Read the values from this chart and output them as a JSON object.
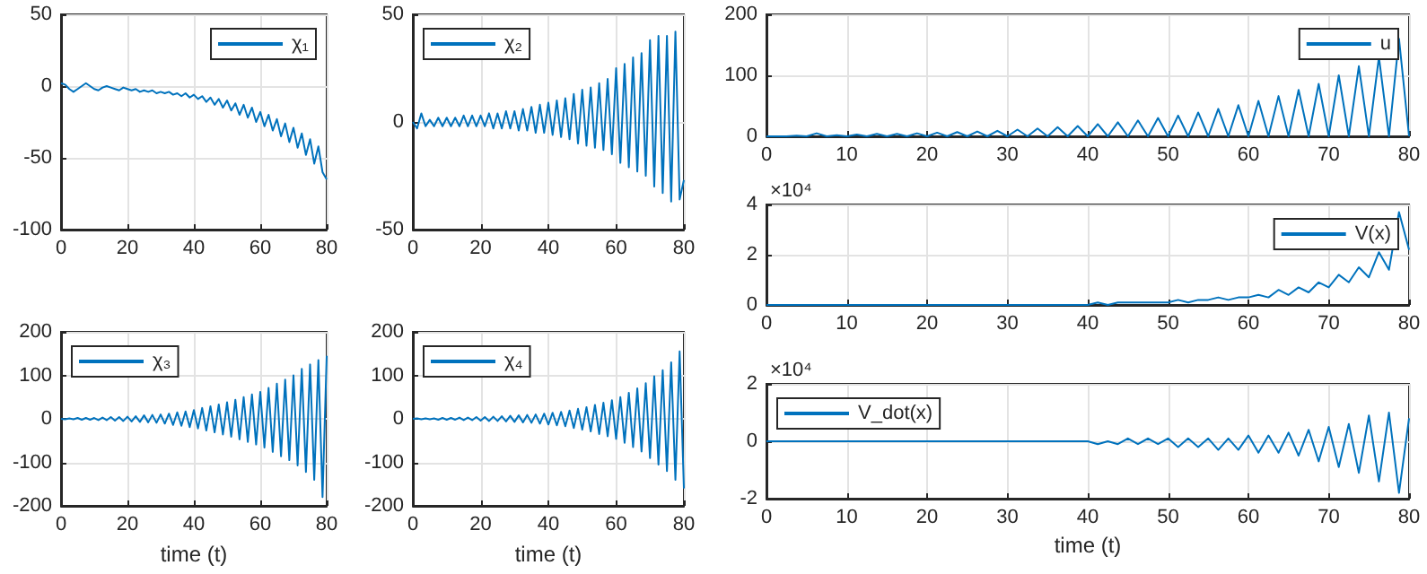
{
  "chart_data": [
    {
      "type": "line",
      "x": [
        0,
        1.25,
        2.5,
        3.75,
        5,
        6.25,
        7.5,
        8.75,
        10,
        11.25,
        12.5,
        13.75,
        15,
        16.25,
        17.5,
        18.75,
        20,
        21.25,
        22.5,
        23.75,
        25,
        26.25,
        27.5,
        28.75,
        30,
        31.25,
        32.5,
        33.75,
        35,
        36.25,
        37.5,
        38.75,
        40,
        41.25,
        42.5,
        43.75,
        45,
        46.25,
        47.5,
        48.75,
        50,
        51.25,
        52.5,
        53.75,
        55,
        56.25,
        57.5,
        58.75,
        60,
        61.25,
        62.5,
        63.75,
        65,
        66.25,
        67.5,
        68.75,
        70,
        71.25,
        72.5,
        73.75,
        75,
        76.25,
        77.5,
        78.75,
        80
      ],
      "xlim": [
        0,
        80
      ],
      "xticks": [
        0,
        20,
        40,
        60,
        80
      ],
      "ylim": [
        -100,
        50
      ],
      "yticks": [
        -100,
        -50,
        0,
        50
      ],
      "grid": true,
      "legend": "top right",
      "marker": "none",
      "series": [
        {
          "name": "χ₁",
          "color": "#0072bd",
          "values": [
            2,
            1,
            -2,
            -4,
            -2,
            0,
            2,
            0,
            -2,
            -3,
            -1,
            0,
            -1,
            -2,
            -3,
            -1,
            -2,
            -3,
            -2,
            -4,
            -3,
            -4,
            -3,
            -5,
            -4,
            -5,
            -4,
            -6,
            -5,
            -7,
            -5,
            -8,
            -6,
            -9,
            -7,
            -11,
            -8,
            -13,
            -9,
            -15,
            -10,
            -17,
            -12,
            -20,
            -13,
            -22,
            -15,
            -25,
            -18,
            -28,
            -20,
            -31,
            -23,
            -35,
            -26,
            -39,
            -29,
            -43,
            -33,
            -48,
            -37,
            -54,
            -42,
            -60,
            -65
          ]
        }
      ]
    },
    {
      "type": "line",
      "x": [
        0,
        1.25,
        2.5,
        3.75,
        5,
        6.25,
        7.5,
        8.75,
        10,
        11.25,
        12.5,
        13.75,
        15,
        16.25,
        17.5,
        18.75,
        20,
        21.25,
        22.5,
        23.75,
        25,
        26.25,
        27.5,
        28.75,
        30,
        31.25,
        32.5,
        33.75,
        35,
        36.25,
        37.5,
        38.75,
        40,
        41.25,
        42.5,
        43.75,
        45,
        46.25,
        47.5,
        48.75,
        50,
        51.25,
        52.5,
        53.75,
        55,
        56.25,
        57.5,
        58.75,
        60,
        61.25,
        62.5,
        63.75,
        65,
        66.25,
        67.5,
        68.75,
        70,
        71.25,
        72.5,
        73.75,
        75,
        76.25,
        77.5,
        78.75,
        80
      ],
      "xlim": [
        0,
        80
      ],
      "xticks": [
        0,
        20,
        40,
        60,
        80
      ],
      "ylim": [
        -50,
        50
      ],
      "yticks": [
        -50,
        0,
        50
      ],
      "grid": true,
      "legend": "top left",
      "marker": "none",
      "series": [
        {
          "name": "χ₂",
          "color": "#0072bd",
          "values": [
            0,
            -3,
            4,
            -2,
            1,
            -2,
            2,
            -2,
            2,
            -2,
            2,
            -2,
            3,
            -2,
            3,
            -2,
            3,
            -2,
            4,
            -3,
            4,
            -3,
            5,
            -3,
            5,
            -4,
            6,
            -4,
            7,
            -5,
            8,
            -5,
            9,
            -6,
            10,
            -7,
            11,
            -8,
            13,
            -10,
            15,
            -11,
            16,
            -12,
            18,
            -13,
            20,
            -15,
            25,
            -19,
            27,
            -21,
            30,
            -23,
            32,
            -25,
            38,
            -30,
            40,
            -33,
            40,
            -37,
            42,
            -36,
            -27
          ]
        }
      ]
    },
    {
      "type": "line",
      "x": [
        0,
        1.25,
        2.5,
        3.75,
        5,
        6.25,
        7.5,
        8.75,
        10,
        11.25,
        12.5,
        13.75,
        15,
        16.25,
        17.5,
        18.75,
        20,
        21.25,
        22.5,
        23.75,
        25,
        26.25,
        27.5,
        28.75,
        30,
        31.25,
        32.5,
        33.75,
        35,
        36.25,
        37.5,
        38.75,
        40,
        41.25,
        42.5,
        43.75,
        45,
        46.25,
        47.5,
        48.75,
        50,
        51.25,
        52.5,
        53.75,
        55,
        56.25,
        57.5,
        58.75,
        60,
        61.25,
        62.5,
        63.75,
        65,
        66.25,
        67.5,
        68.75,
        70,
        71.25,
        72.5,
        73.75,
        75,
        76.25,
        77.5,
        78.75,
        80
      ],
      "xlim": [
        0,
        80
      ],
      "xticks": [
        0,
        20,
        40,
        60,
        80
      ],
      "ylim": [
        -200,
        200
      ],
      "yticks": [
        -200,
        -100,
        0,
        100,
        200
      ],
      "xlabel": "time (t)",
      "grid": true,
      "legend": "top left",
      "marker": "none",
      "series": [
        {
          "name": "χ₃",
          "color": "#0072bd",
          "values": [
            0,
            -1,
            1,
            -1,
            2,
            -2,
            2,
            -2,
            2,
            -3,
            3,
            -3,
            4,
            -4,
            4,
            -5,
            5,
            -6,
            6,
            -7,
            8,
            -8,
            9,
            -9,
            10,
            -11,
            12,
            -14,
            15,
            -16,
            17,
            -19,
            20,
            -22,
            25,
            -27,
            29,
            -31,
            33,
            -36,
            38,
            -41,
            44,
            -47,
            50,
            -53,
            56,
            -59,
            62,
            -66,
            71,
            -76,
            81,
            -86,
            90,
            -95,
            100,
            -107,
            115,
            -122,
            125,
            -140,
            135,
            -180,
            145
          ]
        }
      ]
    },
    {
      "type": "line",
      "x": [
        0,
        1.25,
        2.5,
        3.75,
        5,
        6.25,
        7.5,
        8.75,
        10,
        11.25,
        12.5,
        13.75,
        15,
        16.25,
        17.5,
        18.75,
        20,
        21.25,
        22.5,
        23.75,
        25,
        26.25,
        27.5,
        28.75,
        30,
        31.25,
        32.5,
        33.75,
        35,
        36.25,
        37.5,
        38.75,
        40,
        41.25,
        42.5,
        43.75,
        45,
        46.25,
        47.5,
        48.75,
        50,
        51.25,
        52.5,
        53.75,
        55,
        56.25,
        57.5,
        58.75,
        60,
        61.25,
        62.5,
        63.75,
        65,
        66.25,
        67.5,
        68.75,
        70,
        71.25,
        72.5,
        73.75,
        75,
        76.25,
        77.5,
        78.75,
        80
      ],
      "xlim": [
        0,
        80
      ],
      "xticks": [
        0,
        20,
        40,
        60,
        80
      ],
      "ylim": [
        -200,
        200
      ],
      "yticks": [
        -200,
        -100,
        0,
        100,
        200
      ],
      "xlabel": "time (t)",
      "grid": true,
      "legend": "top left",
      "marker": "none",
      "series": [
        {
          "name": "χ₄",
          "color": "#0072bd",
          "values": [
            0,
            1,
            -1,
            1,
            -1,
            1,
            -2,
            2,
            -2,
            2,
            -2,
            3,
            -3,
            3,
            -3,
            4,
            -4,
            4,
            -5,
            5,
            -5,
            6,
            -6,
            7,
            -7,
            8,
            -8,
            9,
            -9,
            10,
            -11,
            12,
            -13,
            14,
            -15,
            16,
            -17,
            19,
            -21,
            23,
            -25,
            27,
            -29,
            32,
            -35,
            37,
            -40,
            43,
            -46,
            50,
            -55,
            60,
            -65,
            70,
            -75,
            82,
            -90,
            98,
            -105,
            112,
            -120,
            130,
            -140,
            155,
            -160
          ]
        }
      ]
    },
    {
      "type": "line",
      "x": [
        0,
        1.25,
        2.5,
        3.75,
        5,
        6.25,
        7.5,
        8.75,
        10,
        11.25,
        12.5,
        13.75,
        15,
        16.25,
        17.5,
        18.75,
        20,
        21.25,
        22.5,
        23.75,
        25,
        26.25,
        27.5,
        28.75,
        30,
        31.25,
        32.5,
        33.75,
        35,
        36.25,
        37.5,
        38.75,
        40,
        41.25,
        42.5,
        43.75,
        45,
        46.25,
        47.5,
        48.75,
        50,
        51.25,
        52.5,
        53.75,
        55,
        56.25,
        57.5,
        58.75,
        60,
        61.25,
        62.5,
        63.75,
        65,
        66.25,
        67.5,
        68.75,
        70,
        71.25,
        72.5,
        73.75,
        75,
        76.25,
        77.5,
        78.75,
        80
      ],
      "xlim": [
        0,
        80
      ],
      "xticks": [
        0,
        10,
        20,
        30,
        40,
        50,
        60,
        70,
        80
      ],
      "ylim": [
        0,
        200
      ],
      "yticks": [
        0,
        100,
        200
      ],
      "grid": true,
      "legend": "top right",
      "marker": "none",
      "series": [
        {
          "name": "u",
          "color": "#0072bd",
          "values": [
            0,
            0,
            0,
            1,
            0,
            5,
            0,
            2,
            0,
            3,
            0,
            4,
            0,
            4,
            0,
            5,
            0,
            6,
            0,
            7,
            0,
            8,
            0,
            9,
            0,
            11,
            0,
            13,
            0,
            15,
            0,
            17,
            0,
            20,
            0,
            23,
            0,
            26,
            0,
            30,
            0,
            34,
            0,
            39,
            0,
            45,
            0,
            51,
            0,
            58,
            0,
            66,
            0,
            76,
            0,
            86,
            0,
            100,
            0,
            115,
            0,
            130,
            0,
            160,
            0
          ]
        }
      ]
    },
    {
      "type": "line",
      "x": [
        0,
        1.25,
        2.5,
        3.75,
        5,
        6.25,
        7.5,
        8.75,
        10,
        11.25,
        12.5,
        13.75,
        15,
        16.25,
        17.5,
        18.75,
        20,
        21.25,
        22.5,
        23.75,
        25,
        26.25,
        27.5,
        28.75,
        30,
        31.25,
        32.5,
        33.75,
        35,
        36.25,
        37.5,
        38.75,
        40,
        41.25,
        42.5,
        43.75,
        45,
        46.25,
        47.5,
        48.75,
        50,
        51.25,
        52.5,
        53.75,
        55,
        56.25,
        57.5,
        58.75,
        60,
        61.25,
        62.5,
        63.75,
        65,
        66.25,
        67.5,
        68.75,
        70,
        71.25,
        72.5,
        73.75,
        75,
        76.25,
        77.5,
        78.75,
        80
      ],
      "xlim": [
        0,
        80
      ],
      "xticks": [
        0,
        10,
        20,
        30,
        40,
        50,
        60,
        70,
        80
      ],
      "ylim": [
        0,
        4
      ],
      "yticks": [
        0,
        2,
        4
      ],
      "annotations": [
        "×10⁴"
      ],
      "grid": true,
      "legend": "top right",
      "marker": "none",
      "series": [
        {
          "name": "V(x)",
          "color": "#0072bd",
          "values": [
            0,
            0,
            0,
            0,
            0,
            0,
            0,
            0,
            0,
            0,
            0,
            0,
            0,
            0,
            0,
            0,
            0,
            0,
            0,
            0,
            0,
            0,
            0,
            0,
            0,
            0,
            0,
            0,
            0,
            0,
            0,
            0,
            0,
            0.1,
            0,
            0.1,
            0.1,
            0.1,
            0.1,
            0.1,
            0.1,
            0.2,
            0.1,
            0.2,
            0.2,
            0.3,
            0.2,
            0.3,
            0.3,
            0.4,
            0.3,
            0.6,
            0.4,
            0.7,
            0.5,
            0.9,
            0.7,
            1.2,
            0.9,
            1.5,
            1.1,
            2.1,
            1.4,
            3.7,
            2.2
          ]
        }
      ]
    },
    {
      "type": "line",
      "x": [
        0,
        1.25,
        2.5,
        3.75,
        5,
        6.25,
        7.5,
        8.75,
        10,
        11.25,
        12.5,
        13.75,
        15,
        16.25,
        17.5,
        18.75,
        20,
        21.25,
        22.5,
        23.75,
        25,
        26.25,
        27.5,
        28.75,
        30,
        31.25,
        32.5,
        33.75,
        35,
        36.25,
        37.5,
        38.75,
        40,
        41.25,
        42.5,
        43.75,
        45,
        46.25,
        47.5,
        48.75,
        50,
        51.25,
        52.5,
        53.75,
        55,
        56.25,
        57.5,
        58.75,
        60,
        61.25,
        62.5,
        63.75,
        65,
        66.25,
        67.5,
        68.75,
        70,
        71.25,
        72.5,
        73.75,
        75,
        76.25,
        77.5,
        78.75,
        80
      ],
      "xlim": [
        0,
        80
      ],
      "xticks": [
        0,
        10,
        20,
        30,
        40,
        50,
        60,
        70,
        80
      ],
      "ylim": [
        -2,
        2
      ],
      "yticks": [
        -2,
        0,
        2
      ],
      "annotations": [
        "×10⁴"
      ],
      "xlabel": "time (t)",
      "grid": true,
      "legend": "top left",
      "marker": "none",
      "series": [
        {
          "name": "V_dot(x)",
          "color": "#0072bd",
          "values": [
            0,
            0,
            0,
            0,
            0,
            0,
            0,
            0,
            0,
            0,
            0,
            0,
            0,
            0,
            0,
            0,
            0,
            0,
            0,
            0,
            0,
            0,
            0,
            0,
            0,
            0,
            0,
            0,
            0,
            0,
            0,
            0,
            0,
            -0.1,
            0,
            -0.1,
            0.1,
            -0.1,
            0.1,
            -0.1,
            0.1,
            -0.2,
            0.1,
            -0.2,
            0.1,
            -0.3,
            0.1,
            -0.3,
            0.2,
            -0.4,
            0.2,
            -0.4,
            0.3,
            -0.5,
            0.4,
            -0.7,
            0.5,
            -0.9,
            0.6,
            -1.1,
            0.9,
            -1.4,
            1,
            -1.8,
            0.8
          ]
        }
      ]
    }
  ]
}
